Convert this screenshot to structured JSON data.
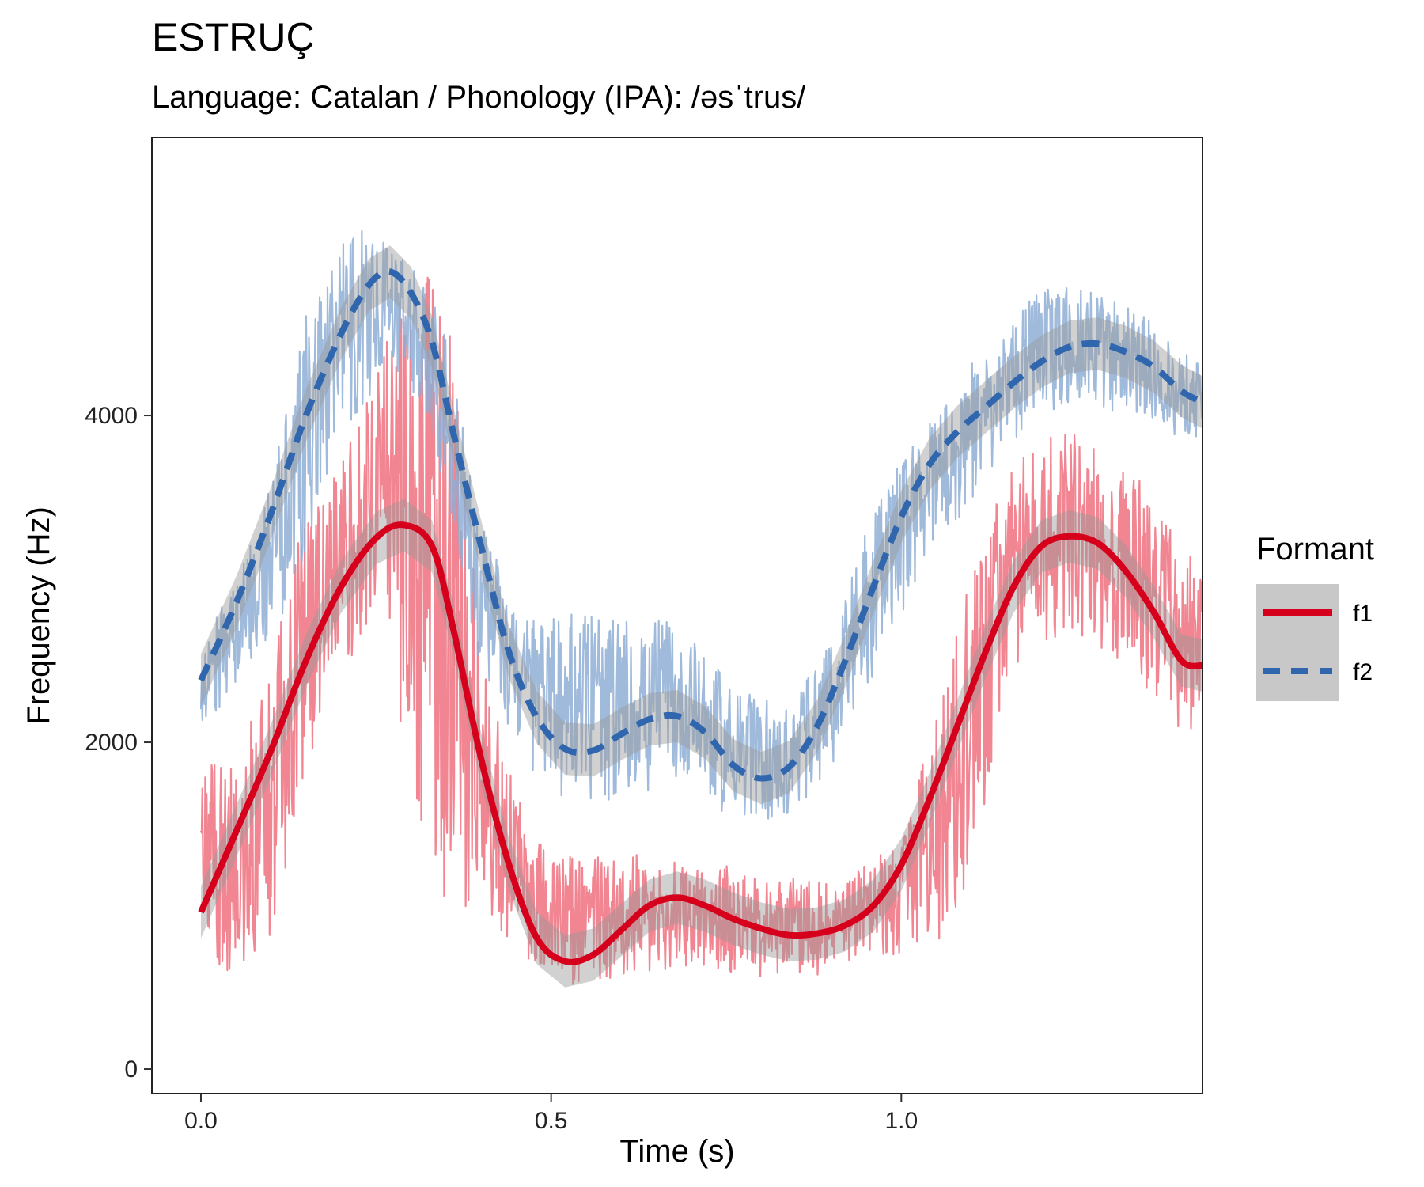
{
  "chart_data": {
    "type": "line",
    "title": "ESTRUÇ",
    "subtitle": "Language: Catalan / Phonology (IPA): /əsˈtrus/",
    "xlabel": "Time (s)",
    "ylabel": "Frequency (Hz)",
    "xlim": [
      -0.07,
      1.43
    ],
    "ylim": [
      -150,
      5700
    ],
    "x_ticks": [
      0.0,
      0.5,
      1.0
    ],
    "x_tick_labels": [
      "0.0",
      "0.5",
      "1.0"
    ],
    "y_ticks": [
      0,
      2000,
      4000
    ],
    "y_tick_labels": [
      "0",
      "2000",
      "4000"
    ],
    "grid": false,
    "legend": {
      "title": "Formant",
      "position": "right"
    },
    "series": [
      {
        "name": "f1",
        "color": "#D7001C",
        "raw_color": "#EE707E",
        "linetype": "solid",
        "smooth": [
          [
            0.0,
            960
          ],
          [
            0.05,
            1450
          ],
          [
            0.1,
            1950
          ],
          [
            0.15,
            2500
          ],
          [
            0.2,
            2950
          ],
          [
            0.25,
            3250
          ],
          [
            0.29,
            3330
          ],
          [
            0.33,
            3200
          ],
          [
            0.36,
            2700
          ],
          [
            0.4,
            1900
          ],
          [
            0.44,
            1250
          ],
          [
            0.48,
            800
          ],
          [
            0.52,
            660
          ],
          [
            0.56,
            700
          ],
          [
            0.6,
            850
          ],
          [
            0.64,
            1000
          ],
          [
            0.68,
            1050
          ],
          [
            0.72,
            1000
          ],
          [
            0.76,
            920
          ],
          [
            0.8,
            860
          ],
          [
            0.84,
            820
          ],
          [
            0.88,
            830
          ],
          [
            0.92,
            880
          ],
          [
            0.96,
            1000
          ],
          [
            1.0,
            1250
          ],
          [
            1.04,
            1650
          ],
          [
            1.08,
            2100
          ],
          [
            1.12,
            2550
          ],
          [
            1.16,
            2950
          ],
          [
            1.2,
            3200
          ],
          [
            1.24,
            3260
          ],
          [
            1.28,
            3220
          ],
          [
            1.32,
            3050
          ],
          [
            1.36,
            2800
          ],
          [
            1.4,
            2500
          ],
          [
            1.43,
            2470
          ]
        ],
        "raw_envelope": [
          [
            0.0,
            2000,
            700
          ],
          [
            0.05,
            1800,
            500
          ],
          [
            0.1,
            2500,
            700
          ],
          [
            0.15,
            3500,
            1800
          ],
          [
            0.2,
            3800,
            2500
          ],
          [
            0.25,
            4300,
            2600
          ],
          [
            0.3,
            5000,
            1400
          ],
          [
            0.35,
            4800,
            700
          ],
          [
            0.4,
            2600,
            900
          ],
          [
            0.45,
            1700,
            700
          ],
          [
            0.5,
            1400,
            600
          ],
          [
            0.55,
            1400,
            550
          ],
          [
            0.6,
            1350,
            600
          ],
          [
            0.65,
            1300,
            550
          ],
          [
            0.7,
            1250,
            600
          ],
          [
            0.75,
            1250,
            550
          ],
          [
            0.8,
            1150,
            550
          ],
          [
            0.85,
            1200,
            550
          ],
          [
            0.9,
            1150,
            600
          ],
          [
            0.95,
            1250,
            650
          ],
          [
            1.0,
            1400,
            650
          ],
          [
            1.05,
            2100,
            650
          ],
          [
            1.1,
            3000,
            1000
          ],
          [
            1.15,
            3700,
            2400
          ],
          [
            1.2,
            3900,
            2600
          ],
          [
            1.25,
            3900,
            2600
          ],
          [
            1.3,
            3800,
            2500
          ],
          [
            1.35,
            3600,
            2300
          ],
          [
            1.4,
            3300,
            2100
          ],
          [
            1.43,
            3100,
            2100
          ]
        ]
      },
      {
        "name": "f2",
        "color": "#2F66AE",
        "raw_color": "#8EAED4",
        "linetype": "dashed",
        "smooth": [
          [
            0.0,
            2380
          ],
          [
            0.05,
            2850
          ],
          [
            0.1,
            3400
          ],
          [
            0.15,
            4000
          ],
          [
            0.2,
            4500
          ],
          [
            0.24,
            4800
          ],
          [
            0.27,
            4880
          ],
          [
            0.3,
            4750
          ],
          [
            0.33,
            4450
          ],
          [
            0.36,
            3900
          ],
          [
            0.4,
            3200
          ],
          [
            0.44,
            2550
          ],
          [
            0.48,
            2150
          ],
          [
            0.52,
            1960
          ],
          [
            0.56,
            1950
          ],
          [
            0.6,
            2050
          ],
          [
            0.64,
            2140
          ],
          [
            0.68,
            2160
          ],
          [
            0.72,
            2060
          ],
          [
            0.76,
            1860
          ],
          [
            0.8,
            1780
          ],
          [
            0.84,
            1850
          ],
          [
            0.88,
            2100
          ],
          [
            0.92,
            2500
          ],
          [
            0.96,
            2950
          ],
          [
            1.0,
            3380
          ],
          [
            1.04,
            3700
          ],
          [
            1.08,
            3900
          ],
          [
            1.12,
            4050
          ],
          [
            1.16,
            4200
          ],
          [
            1.2,
            4330
          ],
          [
            1.24,
            4420
          ],
          [
            1.28,
            4440
          ],
          [
            1.32,
            4390
          ],
          [
            1.36,
            4300
          ],
          [
            1.4,
            4150
          ],
          [
            1.43,
            4080
          ]
        ],
        "raw_envelope": [
          [
            0.0,
            2700,
            2000
          ],
          [
            0.05,
            2900,
            2300
          ],
          [
            0.1,
            3500,
            2500
          ],
          [
            0.15,
            4600,
            3000
          ],
          [
            0.2,
            5100,
            3800
          ],
          [
            0.25,
            5100,
            4100
          ],
          [
            0.3,
            4900,
            4100
          ],
          [
            0.35,
            4500,
            3500
          ],
          [
            0.4,
            3300,
            2300
          ],
          [
            0.45,
            2800,
            1900
          ],
          [
            0.5,
            2900,
            1700
          ],
          [
            0.55,
            2900,
            1700
          ],
          [
            0.6,
            2800,
            1700
          ],
          [
            0.65,
            2800,
            1700
          ],
          [
            0.7,
            2700,
            1700
          ],
          [
            0.75,
            2400,
            1550
          ],
          [
            0.8,
            2300,
            1500
          ],
          [
            0.85,
            2300,
            1600
          ],
          [
            0.9,
            2700,
            1800
          ],
          [
            0.95,
            3300,
            2300
          ],
          [
            1.0,
            3700,
            2700
          ],
          [
            1.05,
            4000,
            3200
          ],
          [
            1.1,
            4300,
            3400
          ],
          [
            1.15,
            4600,
            3800
          ],
          [
            1.2,
            4800,
            4000
          ],
          [
            1.25,
            4800,
            4100
          ],
          [
            1.3,
            4700,
            4000
          ],
          [
            1.35,
            4600,
            4000
          ],
          [
            1.4,
            4400,
            3800
          ],
          [
            1.43,
            4300,
            3800
          ]
        ]
      }
    ]
  }
}
